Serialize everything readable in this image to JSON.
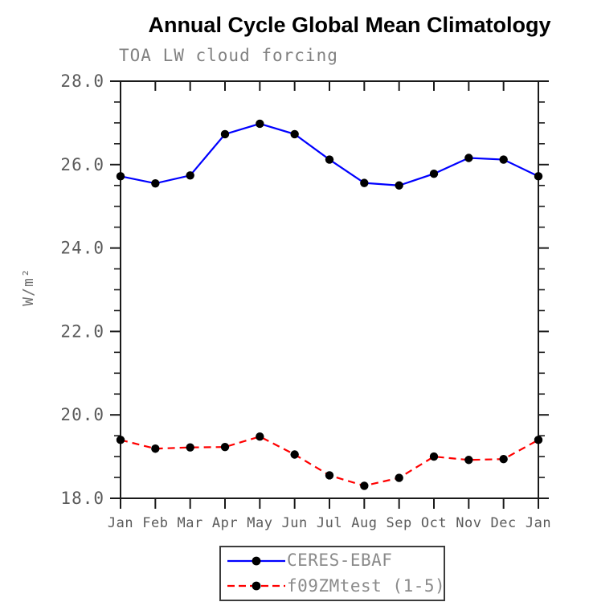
{
  "chart": {
    "title": "Annual Cycle Global Mean Climatology",
    "subtitle": "TOA LW cloud forcing",
    "ylabel": "W/m²"
  },
  "chart_data": {
    "type": "line",
    "title": "Annual Cycle Global Mean Climatology",
    "subtitle": "TOA LW cloud forcing",
    "ylabel": "W/m²",
    "xlabel": "",
    "categories": [
      "Jan",
      "Feb",
      "Mar",
      "Apr",
      "May",
      "Jun",
      "Jul",
      "Aug",
      "Sep",
      "Oct",
      "Nov",
      "Dec",
      "Jan"
    ],
    "series": [
      {
        "name": "CERES-EBAF",
        "line_style": "solid",
        "line_color": "#0000ff",
        "marker": "filled-circle",
        "marker_color": "#000000",
        "values": [
          25.72,
          25.55,
          25.74,
          26.73,
          26.98,
          26.73,
          26.12,
          25.56,
          25.5,
          25.78,
          26.16,
          26.12,
          25.72
        ]
      },
      {
        "name": "f09ZMtest (1-5)",
        "line_style": "dashed",
        "line_color": "#ff0000",
        "marker": "filled-circle",
        "marker_color": "#000000",
        "values": [
          19.4,
          19.19,
          19.22,
          19.23,
          19.48,
          19.05,
          18.55,
          18.3,
          18.49,
          19.0,
          18.92,
          18.94,
          19.4
        ]
      }
    ],
    "ylim": [
      18.0,
      28.0
    ],
    "ytick_interval": 2.0,
    "yminor_interval": 0.5,
    "ytick_labels": [
      "18.0",
      "20.0",
      "22.0",
      "24.0",
      "26.0",
      "28.0"
    ],
    "grid": false,
    "legend_position": "bottom-center",
    "axis_color": "#1a1a1a"
  }
}
